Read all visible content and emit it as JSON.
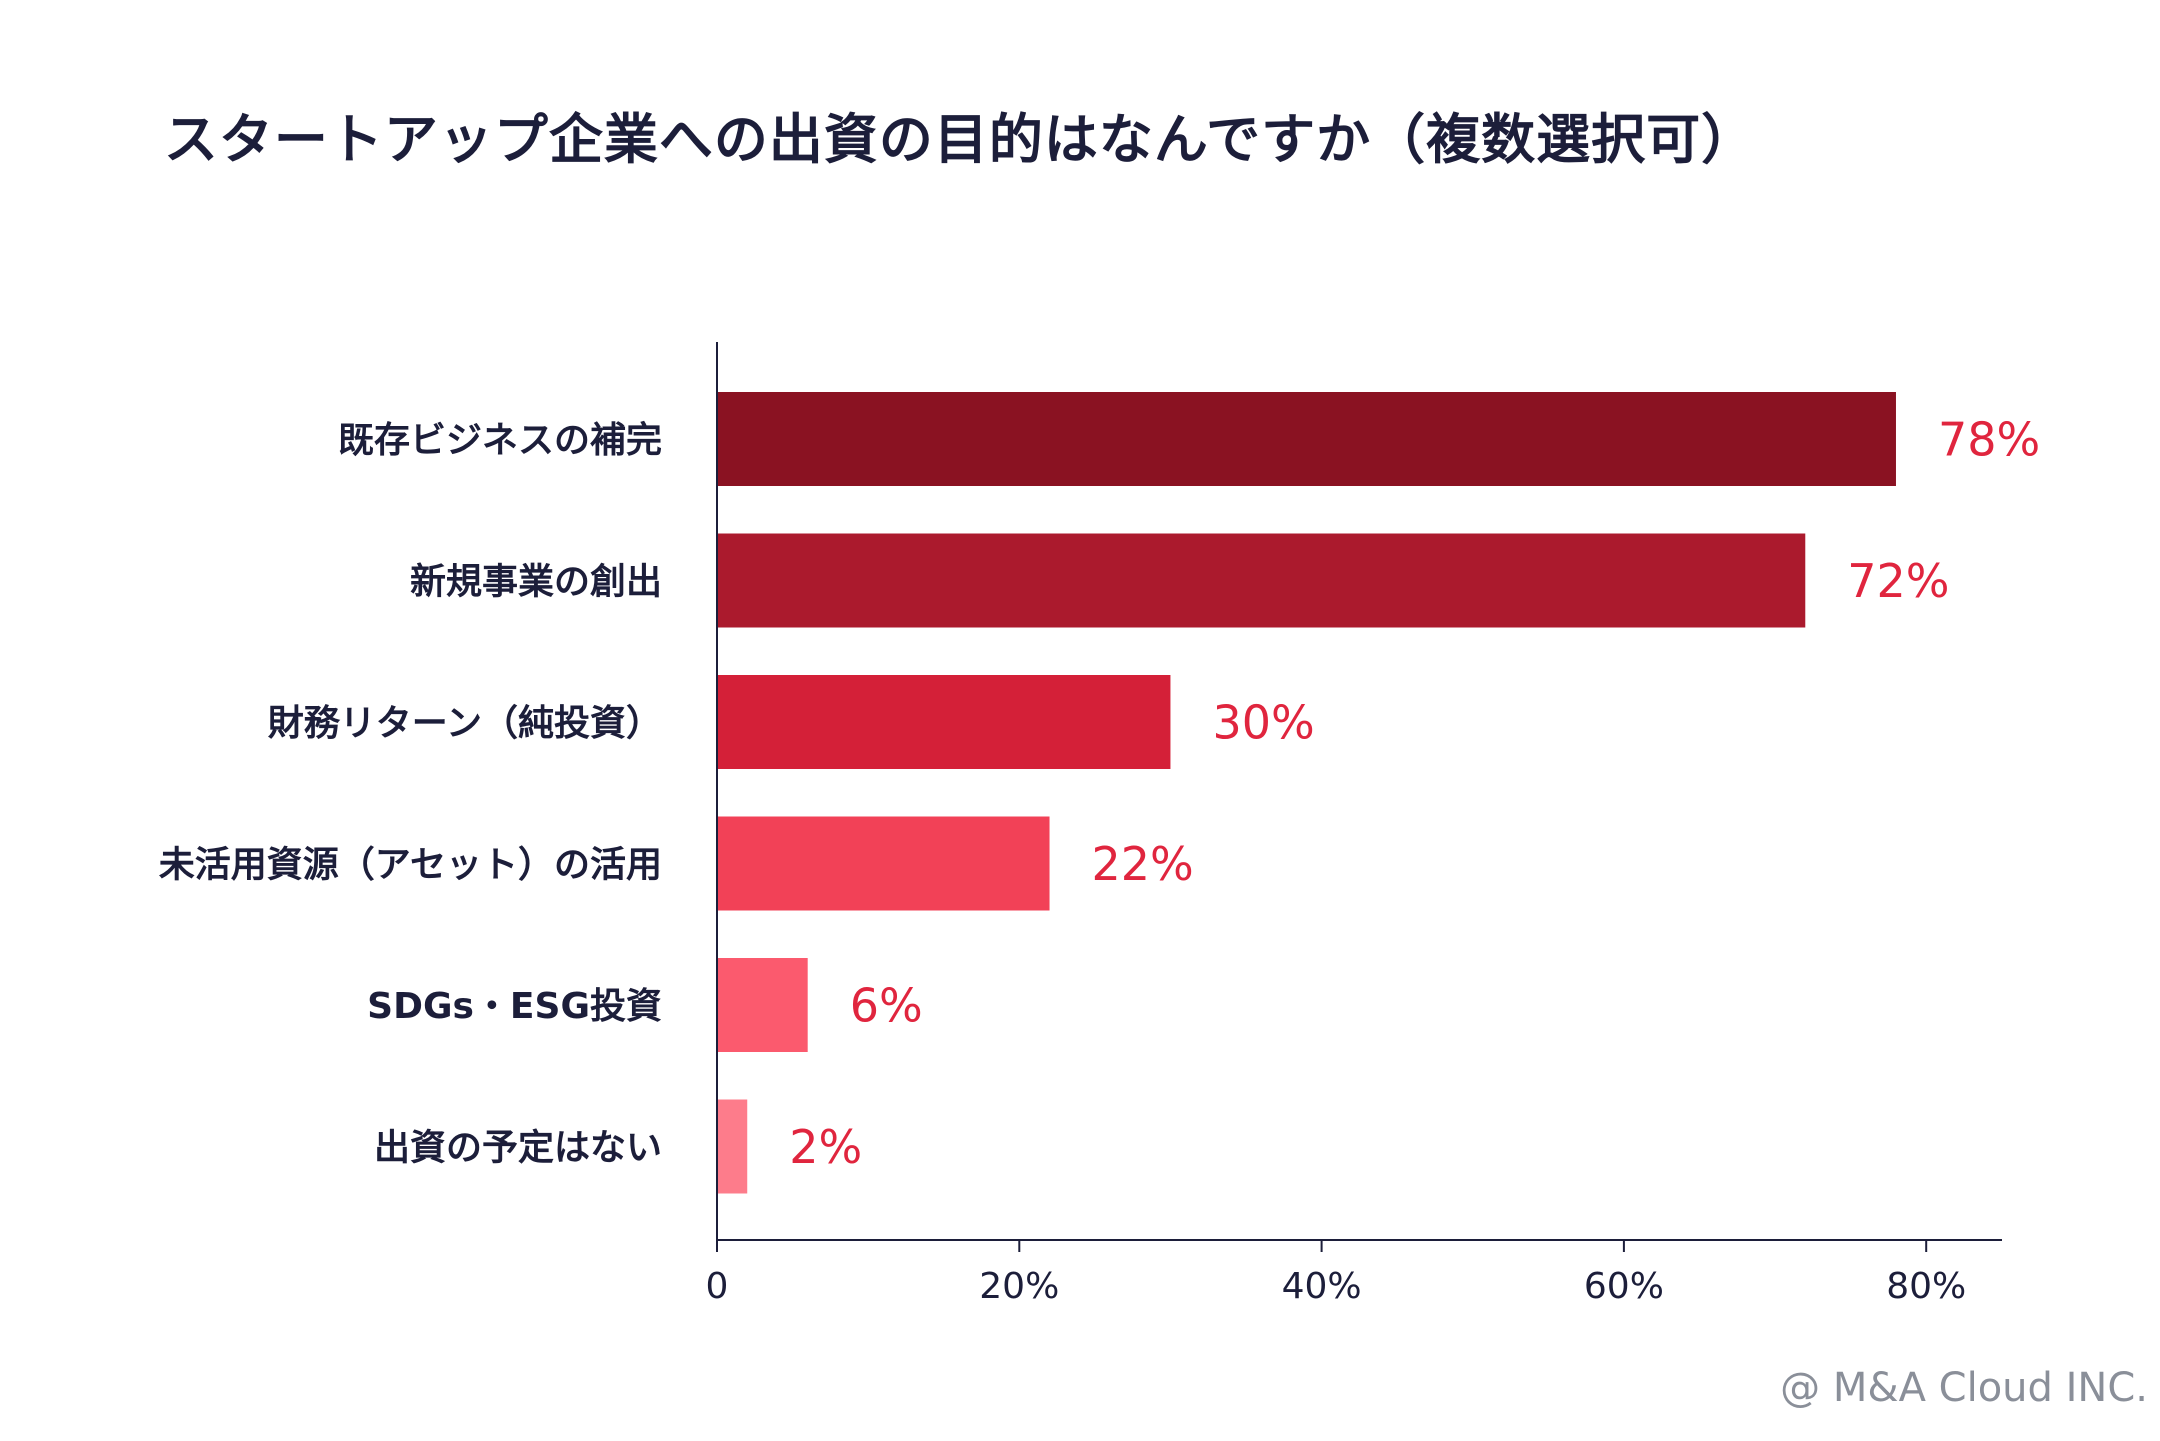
{
  "chart_data": {
    "type": "bar",
    "orientation": "horizontal",
    "title": "スタートアップ企業への出資の目的はなんですか（複数選択可）",
    "categories": [
      "既存ビジネスの補完",
      "新規事業の創出",
      "財務リターン（純投資）",
      "未活用資源（アセット）の活用",
      "SDGs・ESG投資",
      "出資の予定はない"
    ],
    "values": [
      78,
      72,
      30,
      22,
      6,
      2
    ],
    "value_labels": [
      "78%",
      "72%",
      "30%",
      "22%",
      "6%",
      "2%"
    ],
    "bar_colors": [
      "#8a1222",
      "#ab1a2d",
      "#d42038",
      "#f24157",
      "#fb5a6e",
      "#fd7c8b"
    ],
    "value_label_color": "#e0253e",
    "xlim": [
      0,
      85
    ],
    "x_ticks": [
      0,
      20,
      40,
      60,
      80
    ],
    "x_tick_labels": [
      "0",
      "20%",
      "40%",
      "60%",
      "80%"
    ],
    "xlabel": "",
    "ylabel": "",
    "grid": false,
    "legend": "none"
  },
  "footer": {
    "credit": "@ M&A Cloud INC."
  },
  "colors": {
    "title_text": "#1c1e3a",
    "axis": "#1c1e3a",
    "credit_text": "#8a8f99",
    "background": "#ffffff"
  }
}
